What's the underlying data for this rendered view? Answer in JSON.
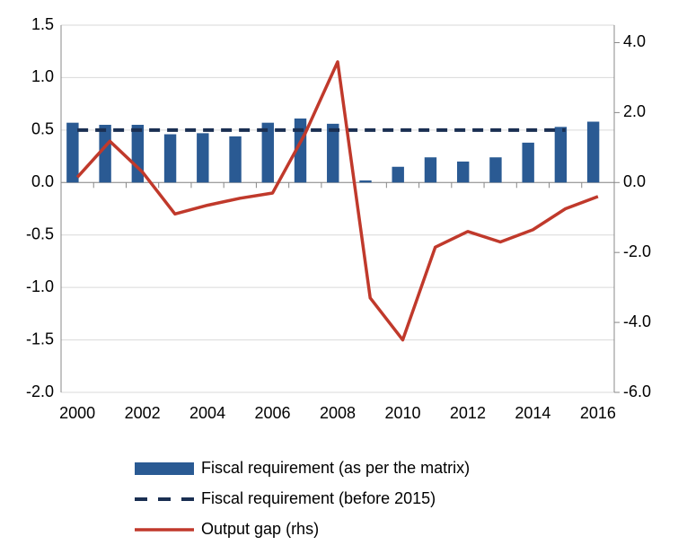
{
  "chart_data": {
    "type": "bar-line",
    "categories": [
      "2000",
      null,
      "2002",
      null,
      "2004",
      null,
      "2006",
      null,
      "2008",
      null,
      "2010",
      null,
      "2012",
      null,
      "2014",
      null,
      "2016"
    ],
    "series": [
      {
        "name": "Fiscal requirement (as per the matrix)",
        "type": "bar",
        "color": "#2a5a93",
        "values": [
          0.57,
          0.55,
          0.55,
          0.46,
          0.47,
          0.44,
          0.57,
          0.61,
          0.56,
          0.02,
          0.15,
          0.24,
          0.2,
          0.24,
          0.38,
          0.53,
          0.58
        ]
      },
      {
        "name": "Fiscal requirement (before 2015)",
        "type": "dashed-line",
        "color": "#1a2f52",
        "values": [
          0.5,
          0.5,
          0.5,
          0.5,
          0.5,
          0.5,
          0.5,
          0.5,
          0.5,
          0.5,
          0.5,
          0.5,
          0.5,
          0.5,
          0.5,
          0.5,
          null
        ]
      },
      {
        "name": "Output gap (rhs)",
        "type": "line",
        "axis": "y2",
        "color": "#c0392b",
        "values": [
          0.15,
          1.18,
          0.3,
          -0.9,
          -0.65,
          -0.45,
          -0.3,
          1.4,
          3.45,
          -3.3,
          -4.5,
          -1.85,
          -1.4,
          -1.7,
          -1.35,
          -0.75,
          -0.4
        ]
      }
    ],
    "ylim": [
      -2,
      1.5
    ],
    "yticks": [
      {
        "value": -2,
        "label": "-2.0"
      },
      -1.5,
      {
        "value": -1,
        "label": "-1.0"
      },
      -0.5,
      {
        "value": 0,
        "label": "0.0"
      },
      0.5,
      {
        "value": 1,
        "label": "1.0"
      },
      1.5
    ],
    "y2lim": [
      -6,
      4.5
    ],
    "y2ticks": [
      {
        "value": -6,
        "label": "-6.0"
      },
      {
        "value": -4,
        "label": "-4.0"
      },
      {
        "value": -2,
        "label": "-2.0"
      },
      {
        "value": 0,
        "label": "0.0"
      },
      {
        "value": 2,
        "label": "2.0"
      },
      {
        "value": 4,
        "label": "4.0"
      }
    ],
    "grid": true,
    "legend": "bottom"
  }
}
